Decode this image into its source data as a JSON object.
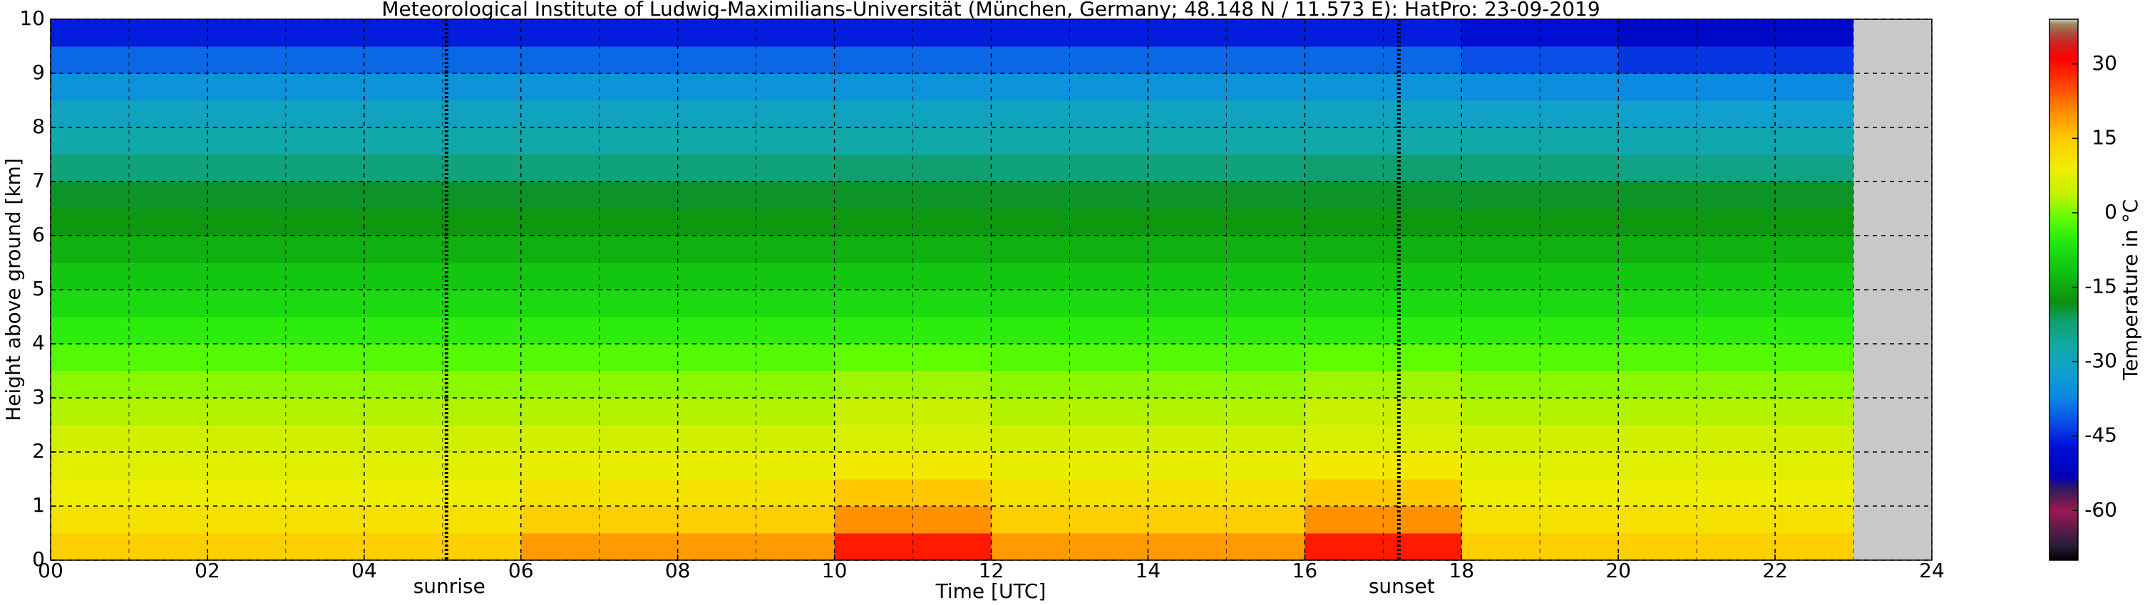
{
  "chart_data": {
    "type": "heatmap",
    "title": "Meteorological Institute of Ludwig-Maximilians-Universität (München, Germany; 48.148 N / 11.573 E):    HatPro: 23-09-2019",
    "xlabel": "Time [UTC]",
    "ylabel": "Height above ground [km]",
    "colorbar_label": "Temperature in °C",
    "x": [
      0,
      2,
      4,
      6,
      8,
      10,
      12,
      14,
      16,
      18,
      20,
      22,
      23,
      24
    ],
    "y": [
      0,
      0.5,
      1,
      1.5,
      2,
      2.5,
      3,
      3.5,
      4,
      4.5,
      5,
      5.5,
      6,
      6.5,
      7,
      7.5,
      8,
      8.5,
      9,
      9.5,
      10
    ],
    "z": [
      [
        14,
        14,
        14,
        19,
        19,
        29,
        19,
        19,
        29,
        14,
        14,
        14,
        null
      ],
      [
        11,
        11,
        11,
        14,
        14,
        20,
        14,
        14,
        20,
        11,
        11,
        11,
        null
      ],
      [
        9,
        9,
        9,
        11,
        11,
        15,
        11,
        11,
        15,
        9,
        9,
        9,
        null
      ],
      [
        7,
        7,
        7,
        8,
        8,
        10,
        8,
        8,
        10,
        7,
        7,
        7,
        null
      ],
      [
        5,
        5,
        5,
        5,
        5,
        6,
        5,
        5,
        6,
        5,
        5,
        5,
        null
      ],
      [
        3,
        3,
        3,
        3,
        3,
        4,
        3,
        3,
        4,
        3,
        3,
        3,
        null
      ],
      [
        1,
        1,
        1,
        1,
        1,
        2,
        1,
        1,
        2,
        1,
        1,
        1,
        null
      ],
      [
        -2,
        -2,
        -2,
        -2,
        -2,
        -1,
        -2,
        -2,
        -1,
        -2,
        -2,
        -2,
        null
      ],
      [
        -5,
        -5,
        -5,
        -5,
        -5,
        -5,
        -5,
        -5,
        -5,
        -5,
        -5,
        -5,
        null
      ],
      [
        -8,
        -8,
        -8,
        -8,
        -8,
        -8,
        -8,
        -8,
        -8,
        -8,
        -8,
        -8,
        null
      ],
      [
        -11,
        -11,
        -11,
        -11,
        -11,
        -11,
        -11,
        -11,
        -11,
        -11,
        -11,
        -11,
        null
      ],
      [
        -14,
        -14,
        -14,
        -14,
        -14,
        -14,
        -14,
        -14,
        -14,
        -14,
        -14,
        -14,
        null
      ],
      [
        -17,
        -17,
        -17,
        -17,
        -17,
        -17,
        -17,
        -17,
        -17,
        -17,
        -17,
        -17,
        null
      ],
      [
        -19,
        -19,
        -19,
        -19,
        -19,
        -19,
        -19,
        -19,
        -19,
        -19,
        -19,
        -19,
        null
      ],
      [
        -23,
        -23,
        -23,
        -23,
        -23,
        -22,
        -23,
        -23,
        -22,
        -23,
        -24,
        -24,
        null
      ],
      [
        -27,
        -27,
        -27,
        -27,
        -27,
        -27,
        -27,
        -27,
        -27,
        -27,
        -28,
        -28,
        null
      ],
      [
        -30,
        -30,
        -30,
        -30,
        -30,
        -30,
        -30,
        -30,
        -30,
        -31,
        -32,
        -32,
        null
      ],
      [
        -35,
        -35,
        -35,
        -35,
        -35,
        -35,
        -35,
        -35,
        -35,
        -36,
        -37,
        -37,
        null
      ],
      [
        -40,
        -40,
        -40,
        -40,
        -40,
        -40,
        -40,
        -40,
        -40,
        -42,
        -44,
        -44,
        null
      ],
      [
        -46,
        -46,
        -46,
        -46,
        -46,
        -46,
        -46,
        -46,
        -46,
        -48,
        -50,
        -50,
        null
      ]
    ],
    "xlim": [
      0,
      24
    ],
    "ylim": [
      0,
      10
    ],
    "xticks": [
      {
        "value": 0,
        "label": "00"
      },
      {
        "value": 2,
        "label": "02"
      },
      {
        "value": 4,
        "label": "04"
      },
      {
        "value": 6,
        "label": "06"
      },
      {
        "value": 8,
        "label": "08"
      },
      {
        "value": 10,
        "label": "10"
      },
      {
        "value": 12,
        "label": "12"
      },
      {
        "value": 14,
        "label": "14"
      },
      {
        "value": 16,
        "label": "16"
      },
      {
        "value": 18,
        "label": "18"
      },
      {
        "value": 20,
        "label": "20"
      },
      {
        "value": 22,
        "label": "22"
      },
      {
        "value": 24,
        "label": "24"
      }
    ],
    "x_minor_ticks": [
      1,
      3,
      5,
      7,
      9,
      11,
      13,
      15,
      17,
      19,
      21,
      23
    ],
    "yticks": [
      0,
      1,
      2,
      3,
      4,
      5,
      6,
      7,
      8,
      9,
      10
    ],
    "clim": [
      -70,
      39
    ],
    "cticks": [
      -60,
      -45,
      -30,
      -15,
      0,
      15,
      30
    ],
    "colorscale": [
      [
        -70,
        "#000000"
      ],
      [
        -67,
        "#2a1e3c"
      ],
      [
        -63,
        "#6a1a4a"
      ],
      [
        -60,
        "#9a1a50"
      ],
      [
        -56,
        "#3a1a5a"
      ],
      [
        -53,
        "#0000b8"
      ],
      [
        -47,
        "#0010d8"
      ],
      [
        -42,
        "#0a50e8"
      ],
      [
        -37,
        "#0a8ae0"
      ],
      [
        -32,
        "#10a0d0"
      ],
      [
        -27,
        "#10a8a8"
      ],
      [
        -22,
        "#10a070"
      ],
      [
        -18,
        "#0c9010"
      ],
      [
        -12,
        "#10c010"
      ],
      [
        -6,
        "#20e810"
      ],
      [
        -1,
        "#60ff00"
      ],
      [
        4,
        "#c8f000"
      ],
      [
        9,
        "#f0ee00"
      ],
      [
        15,
        "#ffc800"
      ],
      [
        20,
        "#ff9000"
      ],
      [
        26,
        "#ff4000"
      ],
      [
        31,
        "#ff0000"
      ],
      [
        34,
        "#d02020"
      ],
      [
        36,
        "#b04838"
      ],
      [
        38,
        "#a08860"
      ],
      [
        39,
        "#c8c8c8"
      ]
    ],
    "missing_color": "#c8c8c8",
    "grid": true,
    "annotations": [
      {
        "text": "sunrise",
        "x": 5.05
      },
      {
        "text": "sunset",
        "x": 17.2
      }
    ]
  }
}
